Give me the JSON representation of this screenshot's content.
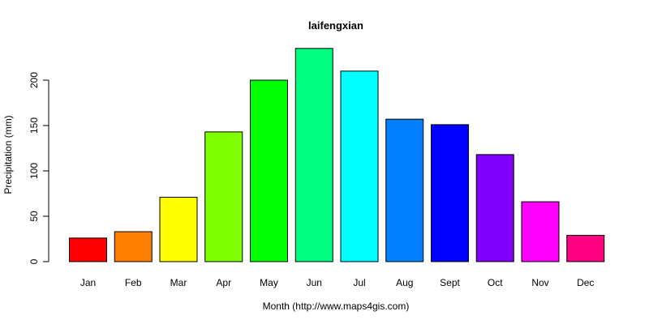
{
  "chart_data": {
    "type": "bar",
    "title": "laifengxian",
    "xlabel": "Month (http://www.maps4gis.com)",
    "ylabel": "Precipitation (mm)",
    "categories": [
      "Jan",
      "Feb",
      "Mar",
      "Apr",
      "May",
      "Jun",
      "Jul",
      "Aug",
      "Sept",
      "Oct",
      "Nov",
      "Dec"
    ],
    "values": [
      26,
      33,
      71,
      143,
      200,
      235,
      210,
      157,
      151,
      118,
      66,
      29
    ],
    "colors": [
      "#ff0000",
      "#ff8000",
      "#ffff00",
      "#80ff00",
      "#00ff00",
      "#00ff80",
      "#00ffff",
      "#0080ff",
      "#0000ff",
      "#8000ff",
      "#ff00ff",
      "#ff0080"
    ],
    "yticks": [
      "0",
      "50",
      "100",
      "150",
      "200"
    ],
    "ylim": [
      0,
      235
    ],
    "grid": false,
    "legend": "none"
  }
}
